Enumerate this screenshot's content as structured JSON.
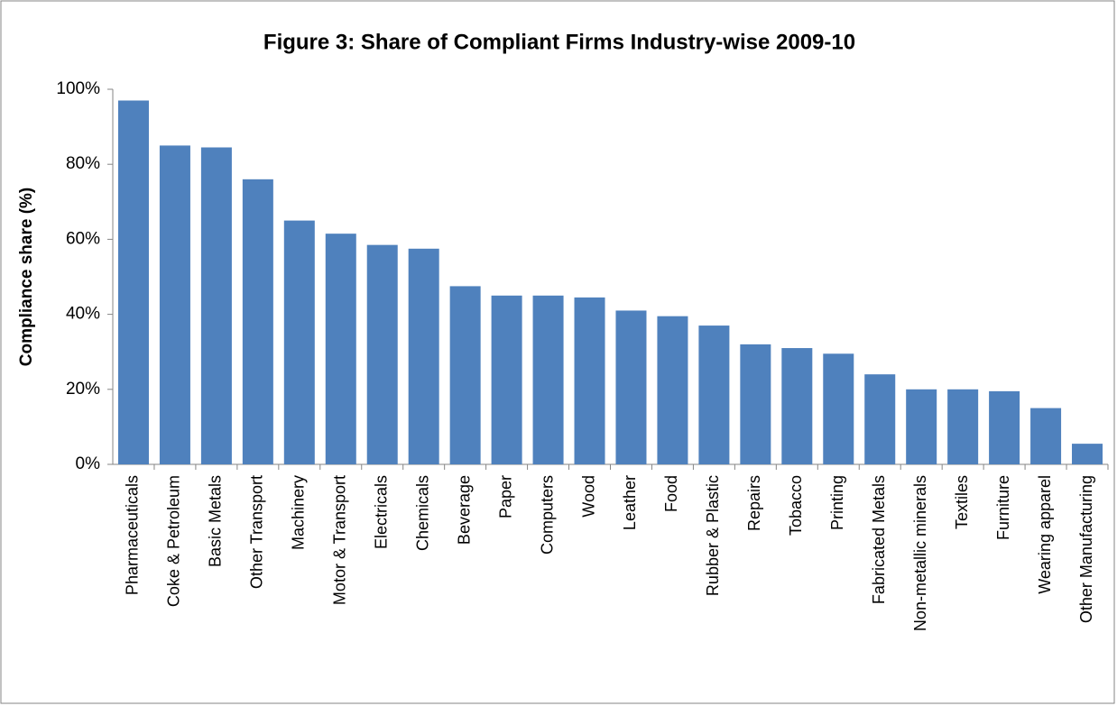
{
  "chart_data": {
    "type": "bar",
    "title": "Figure 3: Share of Compliant Firms Industry-wise 2009-10",
    "y_label": "Compliance share (%)",
    "categories": [
      "Pharmaceuticals",
      "Coke & Petroleum",
      "Basic Metals",
      "Other Transport",
      "Machinery",
      "Motor & Transport",
      "Electricals",
      "Chemicals",
      "Beverage",
      "Paper",
      "Computers",
      "Wood",
      "Leather",
      "Food",
      "Rubber & Plastic",
      "Repairs",
      "Tobacco",
      "Printing",
      "Fabricated Metals",
      "Non-metallic minerals",
      "Textiles",
      "Furniture",
      "Wearing apparel",
      "Other Manufacturing"
    ],
    "values": [
      97,
      85,
      84.5,
      76,
      65,
      61.5,
      58.5,
      57.5,
      47.5,
      45,
      45,
      44.5,
      41,
      39.5,
      37,
      32,
      31,
      29.5,
      24,
      20,
      20,
      19.5,
      15,
      5.5
    ],
    "color": "#4f81bd",
    "ylim": [
      0,
      100
    ],
    "yticks": [
      {
        "value": 0,
        "label": "0%"
      },
      {
        "value": 20,
        "label": "20%"
      },
      {
        "value": 40,
        "label": "40%"
      },
      {
        "value": 60,
        "label": "60%"
      },
      {
        "value": 80,
        "label": "80%"
      },
      {
        "value": 100,
        "label": "100%"
      }
    ],
    "grid": false
  }
}
